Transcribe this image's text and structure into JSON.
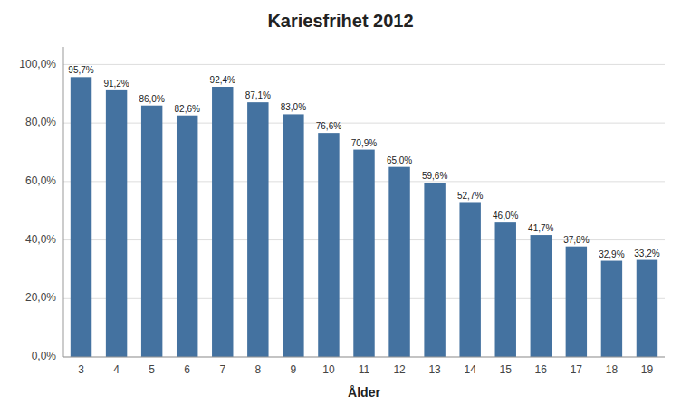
{
  "chart_data": {
    "type": "bar",
    "title": "Kariesfrihet 2012",
    "xlabel": "Ålder",
    "categories": [
      "3",
      "4",
      "5",
      "6",
      "7",
      "8",
      "9",
      "10",
      "11",
      "12",
      "13",
      "14",
      "15",
      "16",
      "17",
      "18",
      "19"
    ],
    "values": [
      95.7,
      91.2,
      86.0,
      82.6,
      92.4,
      87.1,
      83.0,
      76.6,
      70.9,
      65.0,
      59.6,
      52.7,
      46.0,
      41.7,
      37.8,
      32.9,
      33.2
    ],
    "value_labels": [
      "95,7%",
      "91,2%",
      "86,0%",
      "82,6%",
      "92,4%",
      "87,1%",
      "83,0%",
      "76,6%",
      "70,9%",
      "65,0%",
      "59,6%",
      "52,7%",
      "46,0%",
      "41,7%",
      "37,8%",
      "32,9%",
      "33,2%"
    ],
    "data_labels": true,
    "color": "#4472a0",
    "ylim": [
      0,
      106
    ],
    "yticks": [
      {
        "value": 0,
        "label": "0,0%"
      },
      {
        "value": 20,
        "label": "20,0%"
      },
      {
        "value": 40,
        "label": "40,0%"
      },
      {
        "value": 60,
        "label": "60,0%"
      },
      {
        "value": 80,
        "label": "80,0%"
      },
      {
        "value": 100,
        "label": "100,0%"
      }
    ],
    "grid": true
  }
}
